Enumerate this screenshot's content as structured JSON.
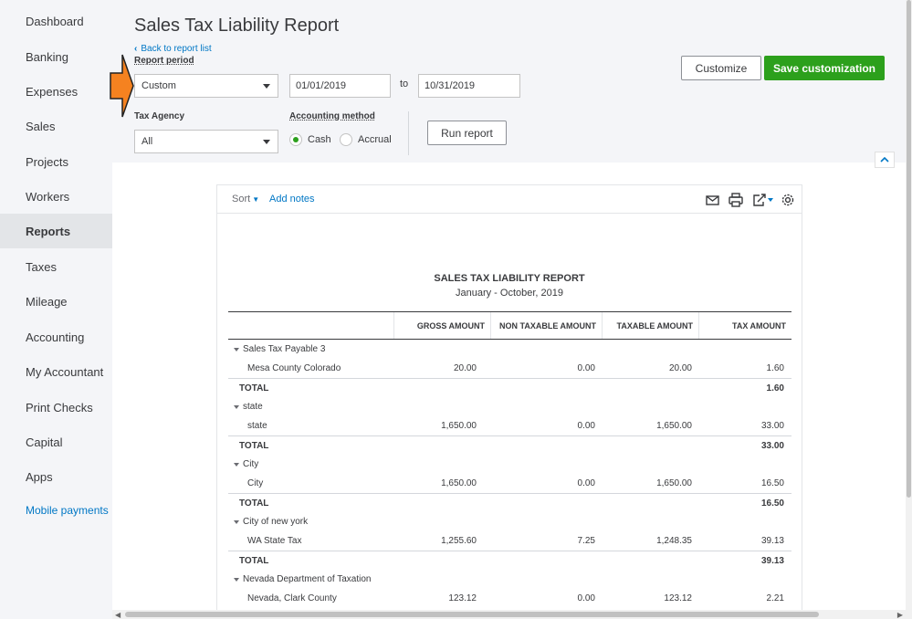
{
  "sidebar": {
    "items": [
      {
        "label": "Dashboard"
      },
      {
        "label": "Banking"
      },
      {
        "label": "Expenses"
      },
      {
        "label": "Sales"
      },
      {
        "label": "Projects"
      },
      {
        "label": "Workers"
      },
      {
        "label": "Reports",
        "active": true
      },
      {
        "label": "Taxes"
      },
      {
        "label": "Mileage"
      },
      {
        "label": "Accounting"
      },
      {
        "label": "My Accountant"
      },
      {
        "label": "Print Checks"
      },
      {
        "label": "Capital"
      },
      {
        "label": "Apps"
      },
      {
        "label": "Mobile payments",
        "link": true
      }
    ]
  },
  "header": {
    "title": "Sales Tax Liability Report",
    "back_link": "Back to report list",
    "report_period_label": "Report period",
    "report_period_value": "Custom",
    "date_from": "01/01/2019",
    "to_label": "to",
    "date_to": "10/31/2019",
    "tax_agency_label": "Tax Agency",
    "tax_agency_value": "All",
    "accounting_method_label": "Accounting method",
    "method_cash": "Cash",
    "method_accrual": "Accrual",
    "selected_method": "Cash",
    "run_report": "Run report",
    "customize": "Customize",
    "save_customization": "Save customization"
  },
  "toolbar": {
    "sort": "Sort",
    "add_notes": "Add notes",
    "icons": [
      "email-icon",
      "print-icon",
      "export-icon",
      "settings-icon"
    ]
  },
  "report": {
    "title": "SALES TAX LIABILITY REPORT",
    "subtitle": "January - October, 2019",
    "columns": [
      "GROSS AMOUNT",
      "NON TAXABLE AMOUNT",
      "TAXABLE AMOUNT",
      "TAX AMOUNT"
    ],
    "rows": [
      {
        "type": "group",
        "label": "Sales Tax Payable 3"
      },
      {
        "type": "detail",
        "label": "Mesa County Colorado",
        "values": [
          "20.00",
          "0.00",
          "20.00",
          "1.60"
        ]
      },
      {
        "type": "total",
        "label": "TOTAL",
        "tax": "1.60"
      },
      {
        "type": "group",
        "label": "state"
      },
      {
        "type": "detail",
        "label": "state",
        "values": [
          "1,650.00",
          "0.00",
          "1,650.00",
          "33.00"
        ]
      },
      {
        "type": "total",
        "label": "TOTAL",
        "tax": "33.00"
      },
      {
        "type": "group",
        "label": "City"
      },
      {
        "type": "detail",
        "label": "City",
        "values": [
          "1,650.00",
          "0.00",
          "1,650.00",
          "16.50"
        ]
      },
      {
        "type": "total",
        "label": "TOTAL",
        "tax": "16.50"
      },
      {
        "type": "group",
        "label": "City of new york"
      },
      {
        "type": "detail",
        "label": "WA State Tax",
        "values": [
          "1,255.60",
          "7.25",
          "1,248.35",
          "39.13"
        ]
      },
      {
        "type": "total",
        "label": "TOTAL",
        "tax": "39.13"
      },
      {
        "type": "group",
        "label": "Nevada Department of Taxation"
      },
      {
        "type": "detail",
        "label": "Nevada, Clark County",
        "values": [
          "123.12",
          "0.00",
          "123.12",
          "2.21"
        ]
      }
    ]
  },
  "colors": {
    "accent_green": "#2ca01c",
    "link_blue": "#0077c5",
    "annotation_orange": "#f58220"
  }
}
